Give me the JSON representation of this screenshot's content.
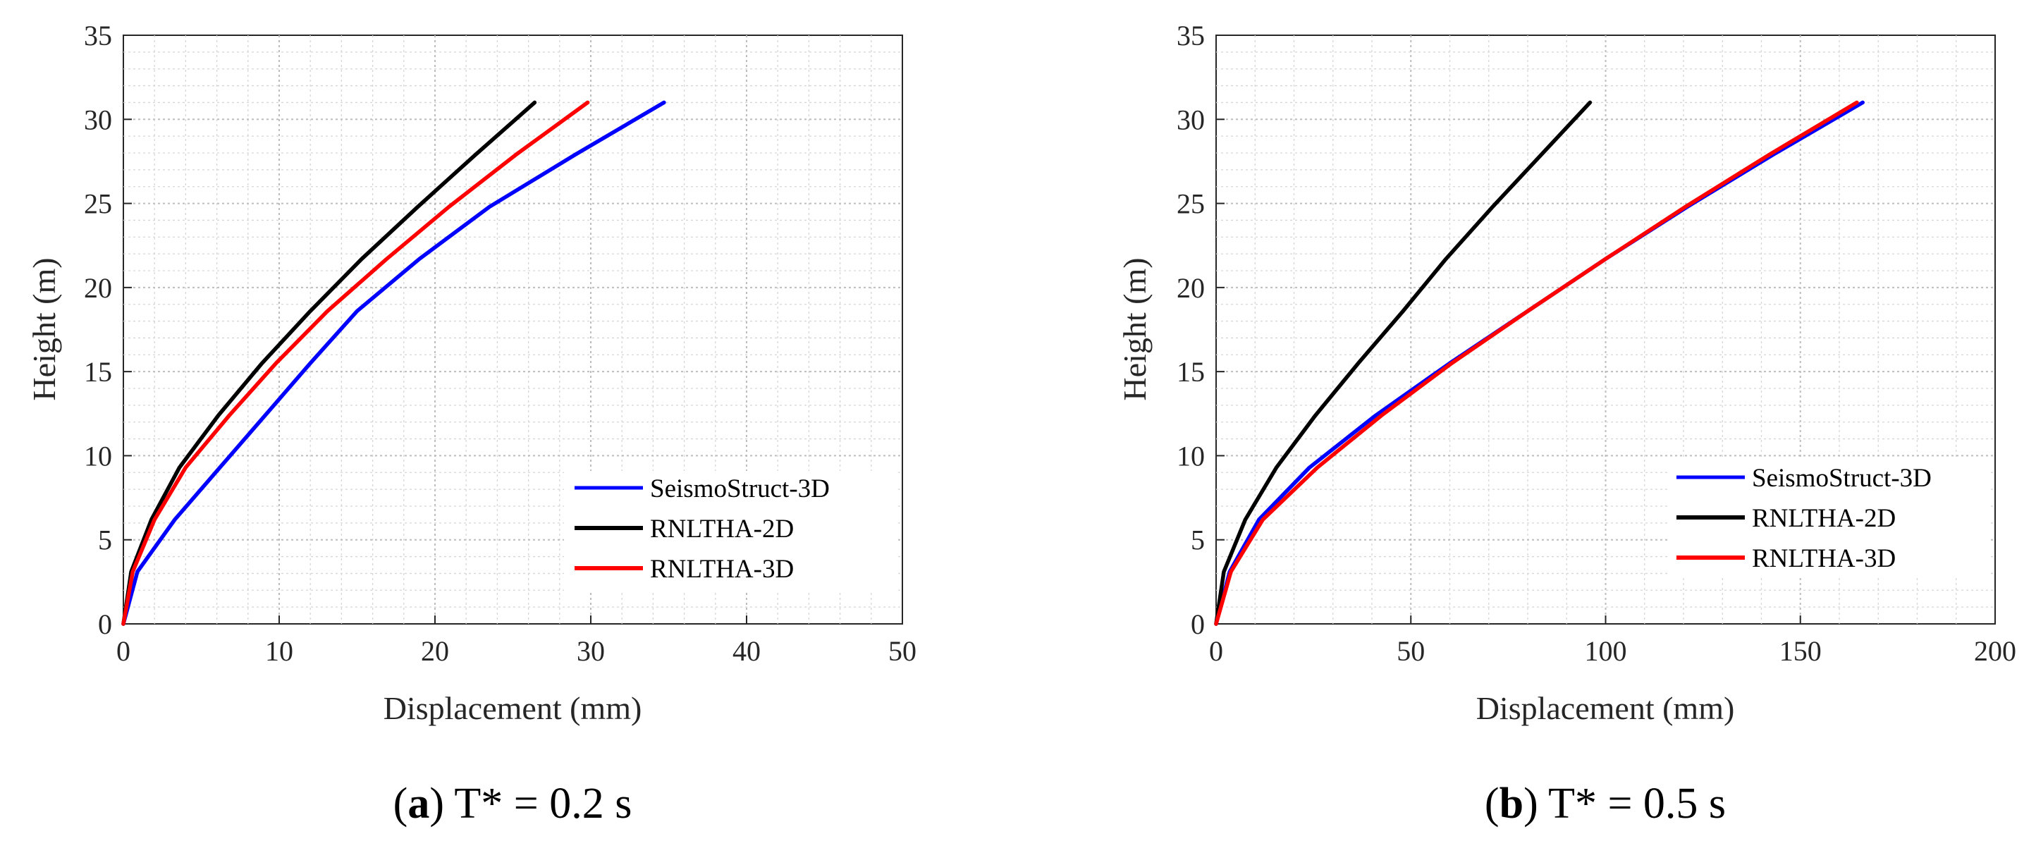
{
  "chart_data": [
    {
      "type": "line",
      "panel_id": "a",
      "caption": {
        "prefix": "(",
        "letter": "a",
        "suffix": ") T* = 0.2 s"
      },
      "xlabel": "Displacement (mm)",
      "ylabel": "Height (m)",
      "xlim": [
        0,
        50
      ],
      "ylim": [
        0,
        35
      ],
      "xticks": [
        0,
        10,
        20,
        30,
        40,
        50
      ],
      "yticks": [
        0,
        5,
        10,
        15,
        20,
        25,
        30,
        35
      ],
      "grid": "major and minor, dotted",
      "legend_position": "lower-right",
      "series": [
        {
          "name": "SeismoStruct-3D",
          "color": "#0000ff",
          "x": [
            0,
            0.9,
            3.3,
            6.2,
            9.1,
            12.0,
            15.0,
            19.0,
            23.5,
            29.0,
            34.7
          ],
          "y": [
            0,
            3.1,
            6.2,
            9.3,
            12.4,
            15.5,
            18.6,
            21.7,
            24.8,
            27.9,
            31.0
          ]
        },
        {
          "name": "RNLTHA-2D",
          "color": "#000000",
          "x": [
            0,
            0.5,
            1.8,
            3.6,
            6.1,
            8.9,
            12.0,
            15.3,
            18.9,
            22.6,
            26.4
          ],
          "y": [
            0,
            3.1,
            6.2,
            9.3,
            12.4,
            15.5,
            18.6,
            21.7,
            24.8,
            27.9,
            31.0
          ]
        },
        {
          "name": "RNLTHA-3D",
          "color": "#ff0000",
          "x": [
            0,
            0.6,
            2.0,
            4.0,
            6.8,
            9.8,
            13.1,
            16.9,
            20.9,
            25.2,
            29.8
          ],
          "y": [
            0,
            3.1,
            6.2,
            9.3,
            12.4,
            15.5,
            18.6,
            21.7,
            24.8,
            27.9,
            31.0
          ]
        }
      ]
    },
    {
      "type": "line",
      "panel_id": "b",
      "caption": {
        "prefix": "(",
        "letter": "b",
        "suffix": ") T* = 0.5 s"
      },
      "xlabel": "Displacement (mm)",
      "ylabel": "Height (m)",
      "xlim": [
        0,
        200
      ],
      "ylim": [
        0,
        35
      ],
      "xticks": [
        0,
        50,
        100,
        150,
        200
      ],
      "yticks": [
        0,
        5,
        10,
        15,
        20,
        25,
        30,
        35
      ],
      "grid": "major and minor, dotted",
      "legend_position": "lower-right",
      "series": [
        {
          "name": "SeismoStruct-3D",
          "color": "#0000ff",
          "x": [
            0,
            3.5,
            11.0,
            24.0,
            41.0,
            60.0,
            80.0,
            100.0,
            121.0,
            143.0,
            166.0
          ],
          "y": [
            0,
            3.1,
            6.2,
            9.3,
            12.4,
            15.5,
            18.6,
            21.7,
            24.8,
            27.9,
            31.0
          ]
        },
        {
          "name": "RNLTHA-2D",
          "color": "#000000",
          "x": [
            0,
            2.0,
            7.5,
            15.5,
            25.5,
            36.5,
            48.0,
            59.0,
            71.0,
            83.5,
            96.0
          ],
          "y": [
            0,
            3.1,
            6.2,
            9.3,
            12.4,
            15.5,
            18.6,
            21.7,
            24.8,
            27.9,
            31.0
          ]
        },
        {
          "name": "RNLTHA-3D",
          "color": "#ff0000",
          "x": [
            0,
            3.8,
            12.0,
            26.0,
            42.5,
            60.5,
            80.0,
            100.0,
            120.5,
            142.0,
            164.5
          ],
          "y": [
            0,
            3.1,
            6.2,
            9.3,
            12.4,
            15.5,
            18.6,
            21.7,
            24.8,
            27.9,
            31.0
          ]
        }
      ]
    }
  ]
}
